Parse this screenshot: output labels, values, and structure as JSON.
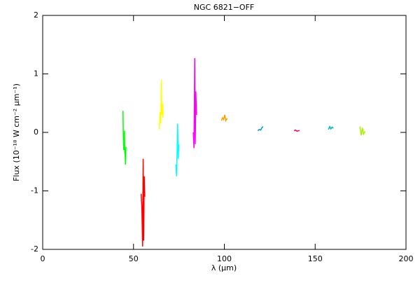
{
  "chart_data": {
    "type": "line",
    "title": "NGC 6821−OFF",
    "x_label": "λ (μm)",
    "y_label": "Flux (10⁻¹⁸ W cm⁻² μm⁻¹)",
    "xlim": [
      0,
      200
    ],
    "ylim": [
      -2,
      2
    ],
    "xticks": [
      0,
      50,
      100,
      150,
      200
    ],
    "yticks": [
      -2,
      -1,
      0,
      1,
      2
    ],
    "series": [
      {
        "color": "#00ff00",
        "x": [
          44.2,
          44.4,
          44.6,
          44.8,
          45.0,
          45.2,
          45.4,
          45.6,
          45.8
        ],
        "values": [
          0.37,
          -0.1,
          -0.3,
          -0.15,
          0.03,
          -0.35,
          -0.4,
          -0.55,
          -0.25
        ]
      },
      {
        "color": "#ff0000",
        "x": [
          54.2,
          54.6,
          55.0,
          55.3,
          55.6,
          55.9,
          56.2
        ],
        "values": [
          -1.05,
          -1.3,
          -1.95,
          -0.45,
          -1.85,
          -0.75,
          -1.1
        ]
      },
      {
        "color": "#ffff00",
        "x": [
          64.2,
          64.6,
          65.0,
          65.3,
          65.6,
          66.0,
          66.3
        ],
        "values": [
          0.05,
          0.35,
          0.15,
          0.9,
          0.3,
          0.5,
          0.25
        ]
      },
      {
        "color": "#00ffff",
        "x": [
          73.3,
          73.7,
          74.0,
          74.3,
          74.6,
          75.0
        ],
        "values": [
          -0.55,
          -0.75,
          -0.3,
          0.15,
          -0.45,
          -0.2
        ]
      },
      {
        "color": "#ff00ff",
        "x": [
          82.9,
          83.3,
          83.7,
          84.0,
          84.3,
          84.7
        ],
        "values": [
          0.0,
          -0.27,
          1.27,
          -0.2,
          0.7,
          0.3
        ]
      },
      {
        "color": "#ff9900",
        "x": [
          98.4,
          99.0,
          99.6,
          100.2,
          100.8,
          101.6
        ],
        "values": [
          0.2,
          0.25,
          0.22,
          0.3,
          0.2,
          0.24
        ]
      },
      {
        "color": "#0099cc",
        "x": [
          118.4,
          119.2,
          120.0,
          120.7,
          121.3
        ],
        "values": [
          0.03,
          0.05,
          0.04,
          0.08,
          0.1
        ]
      },
      {
        "color": "#ff0066",
        "x": [
          138.4,
          139.2,
          140.0,
          140.8,
          141.4
        ],
        "values": [
          0.03,
          0.04,
          0.02,
          0.03,
          0.03
        ]
      },
      {
        "color": "#00bbbb",
        "x": [
          157.3,
          158.0,
          158.6,
          159.3,
          160.0
        ],
        "values": [
          0.05,
          0.1,
          0.06,
          0.09,
          0.07
        ]
      },
      {
        "color": "#aaee00",
        "x": [
          174.6,
          175.3,
          176.0,
          176.6,
          177.5
        ],
        "values": [
          0.1,
          -0.05,
          0.08,
          -0.03,
          0.02
        ]
      }
    ]
  }
}
